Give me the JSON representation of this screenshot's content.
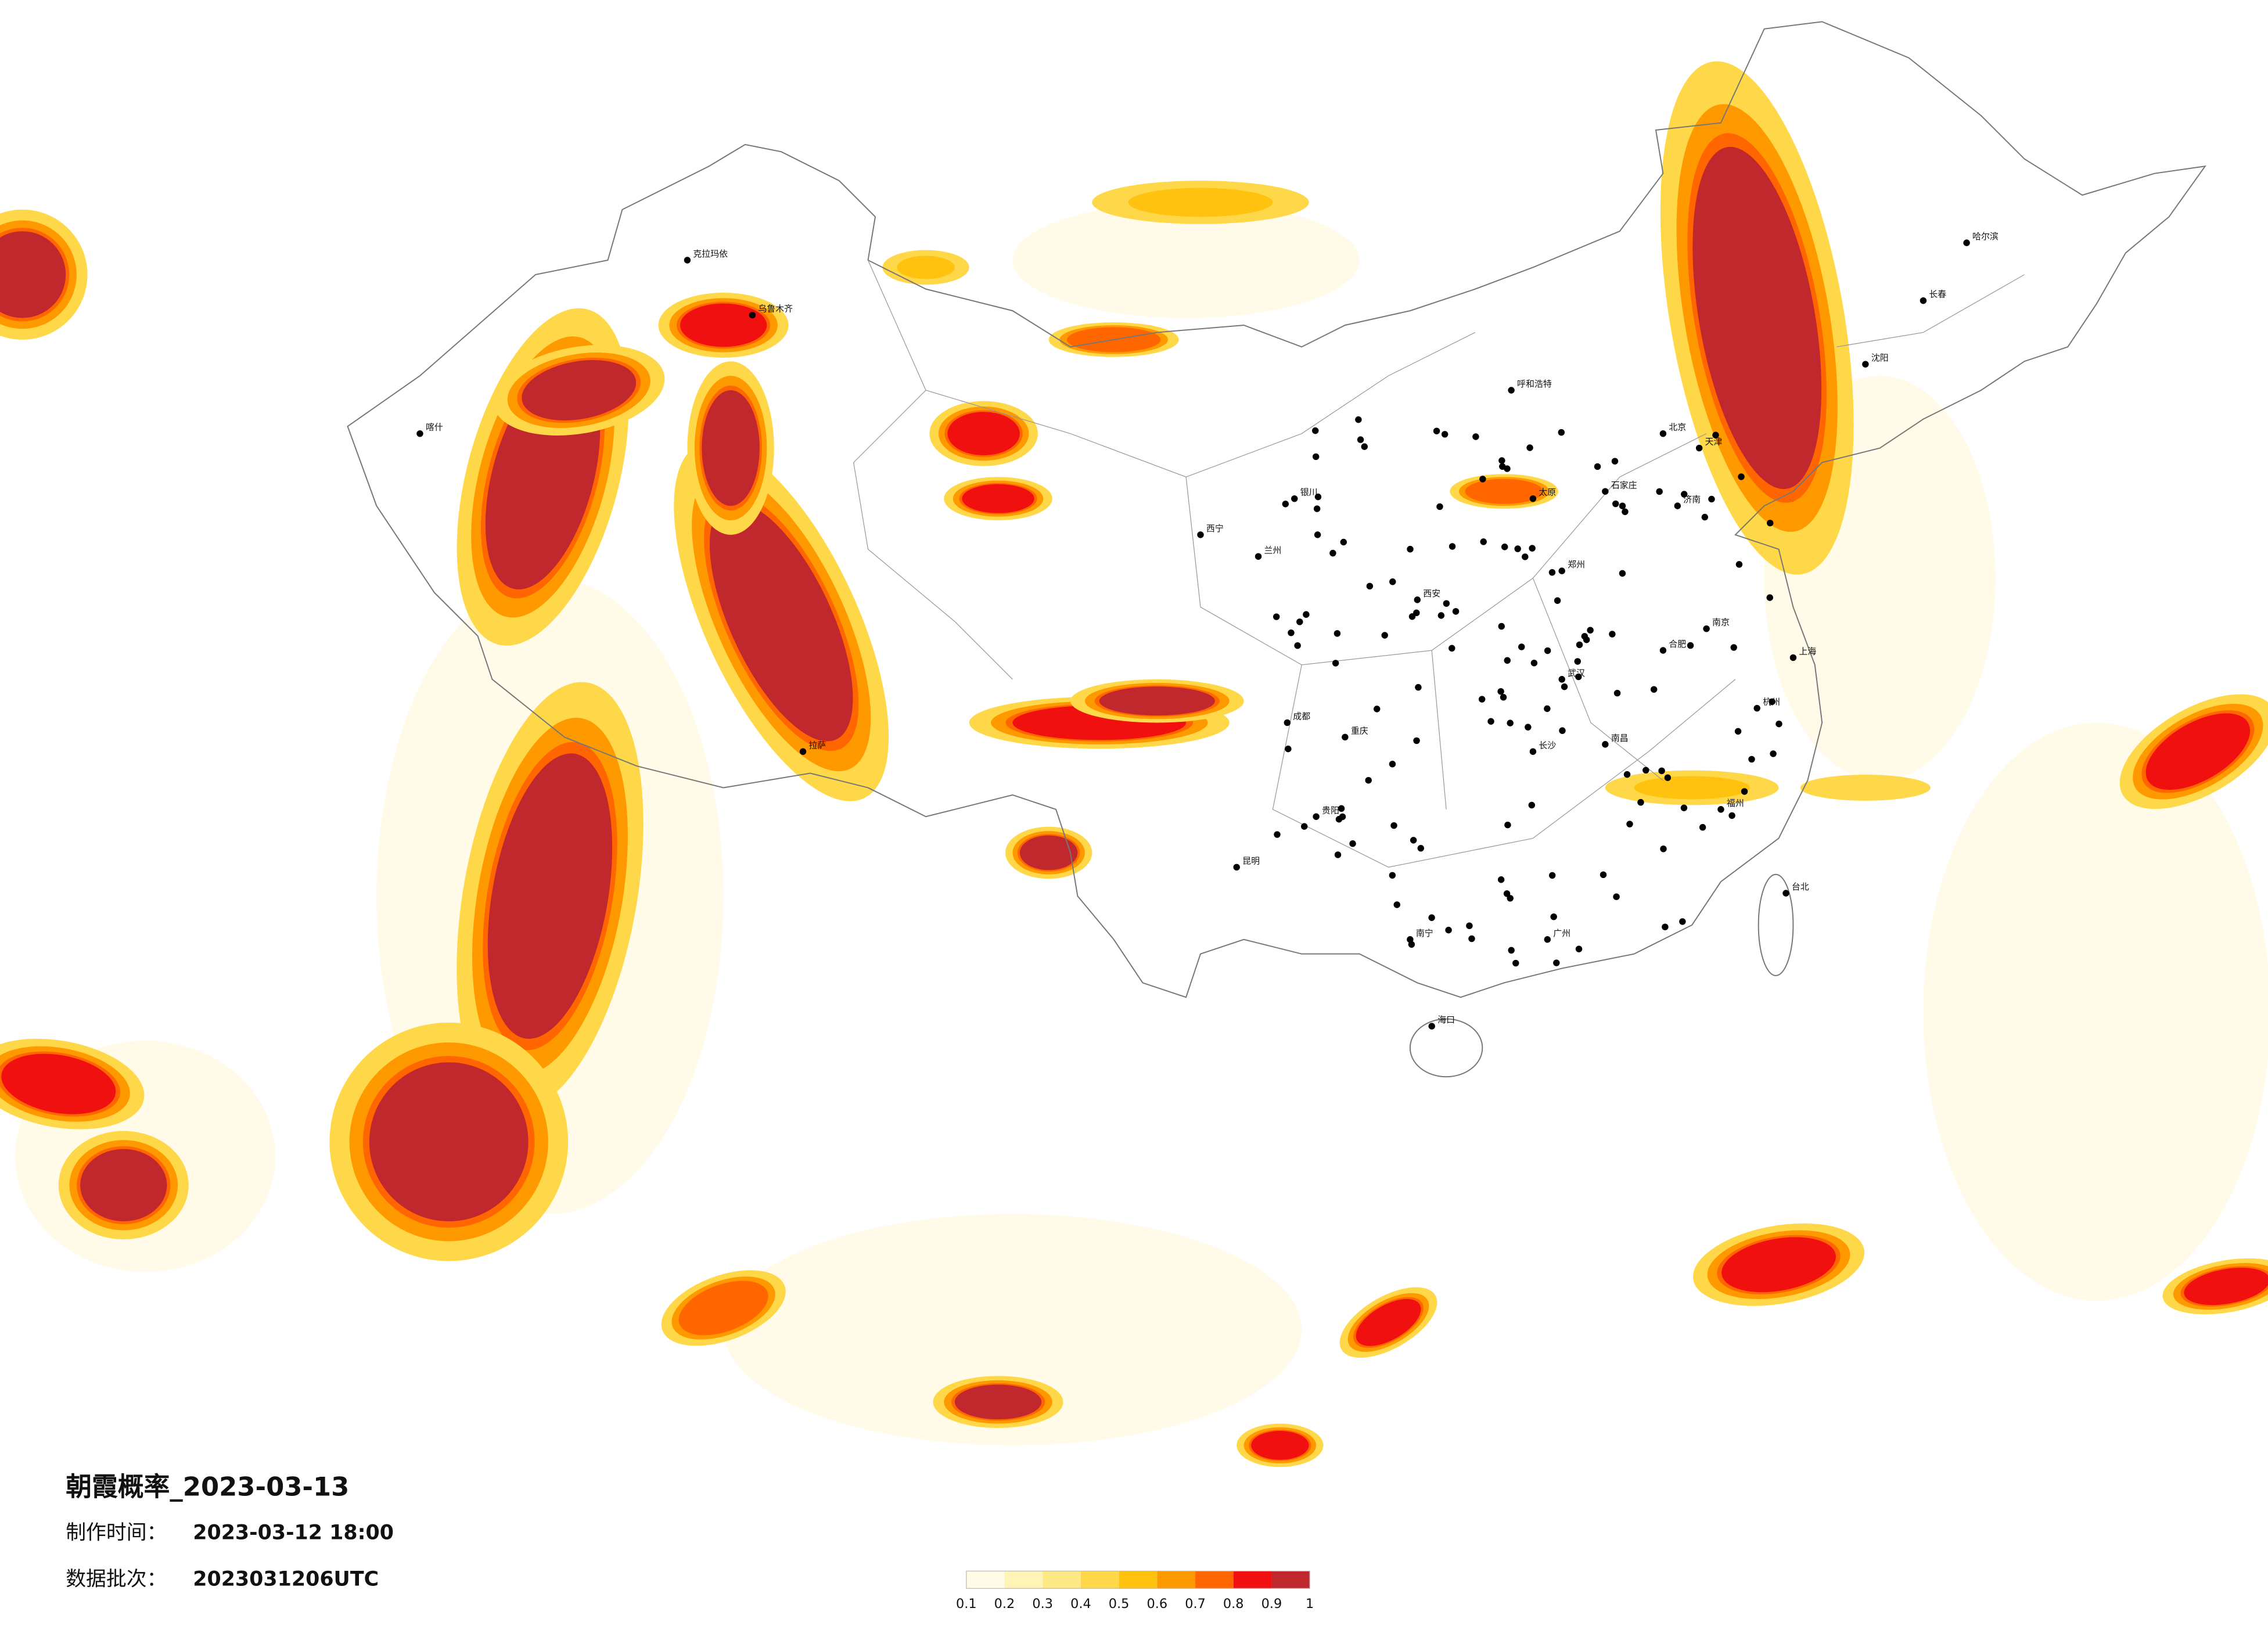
{
  "title": "朝霞概率_2023-03-13",
  "info": [
    {
      "label": "制作时间：",
      "value": "2023-03-12 18:00"
    },
    {
      "label": "数据批次：",
      "value": "2023031206UTC"
    }
  ],
  "legend": {
    "ticks": [
      0.1,
      0.2,
      0.3,
      0.4,
      0.5,
      0.6,
      0.7,
      0.8,
      0.9,
      1
    ],
    "colors": [
      "#fffbe6",
      "#fff3b5",
      "#ffe985",
      "#ffd84a",
      "#ffc20e",
      "#ff9900",
      "#ff6600",
      "#f01010",
      "#c0282d"
    ]
  },
  "cities": [
    "哈尔滨",
    "长春",
    "沈阳",
    "北京",
    "天津",
    "呼和浩特",
    "石家庄",
    "太原",
    "济南",
    "郑州",
    "西安",
    "兰州",
    "西宁",
    "银川",
    "乌鲁木齐",
    "克拉玛依",
    "喀什",
    "拉萨",
    "成都",
    "重庆",
    "昆明",
    "贵阳",
    "南宁",
    "广州",
    "武汉",
    "长沙",
    "南昌",
    "合肥",
    "南京",
    "上海",
    "杭州",
    "福州",
    "台北",
    "海口"
  ]
}
